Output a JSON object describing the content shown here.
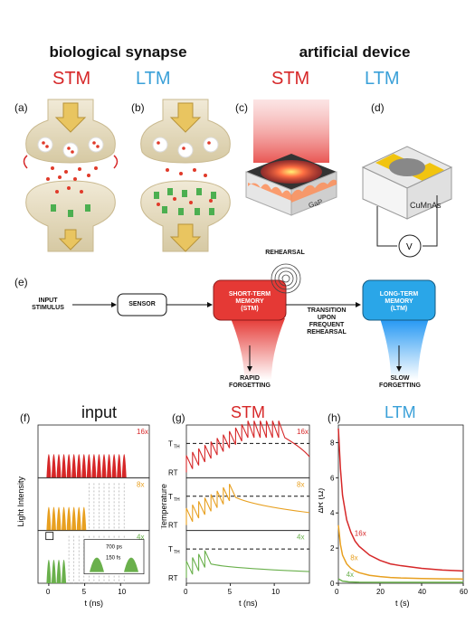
{
  "headers": {
    "bio": "biological synapse",
    "artificial": "artificial device"
  },
  "tags": {
    "stm": "STM",
    "ltm": "LTM"
  },
  "panels": {
    "a": "(a)",
    "b": "(b)",
    "c": "(c)",
    "d": "(d)",
    "e": "(e)",
    "f": "(f)",
    "g": "(g)",
    "h": "(h)"
  },
  "device": {
    "gap_label": "GaP",
    "cumnas_label": "CuMnAs",
    "voltmeter": "V"
  },
  "flow": {
    "input": "INPUT\nSTIMULUS",
    "sensor": "SENSOR",
    "stm_box": "SHORT-TERM\nMEMORY\n(STM)",
    "rehearsal": "REHEARSAL",
    "transition": "TRANSITION\nUPON\nFREQUENT\nREHEARSAL",
    "ltm_box": "LONG-TERM\nMEMORY\n(LTM)",
    "rapid": "RAPID\nFORGETTING",
    "slow": "SLOW\nFORGETTING"
  },
  "plot_titles": {
    "f": "input",
    "g": "STM",
    "h": "LTM"
  },
  "colors": {
    "red": "#d62728",
    "orange": "#e8a020",
    "green": "#6ab04c",
    "blue": "#3aa0d8"
  },
  "chart_data": [
    {
      "type": "line",
      "title": "input",
      "xlabel": "t (ns)",
      "ylabel": "Light Intensity",
      "xlim": [
        -1.5,
        14
      ],
      "xticks": [
        0,
        5,
        10
      ],
      "series": [
        {
          "name": "16x",
          "pulse_times_ns": [
            0,
            0.7,
            1.4,
            2.1,
            2.8,
            3.5,
            4.2,
            4.9,
            5.6,
            6.3,
            7.0,
            7.7,
            8.4,
            9.1,
            9.8,
            10.5
          ]
        },
        {
          "name": "8x",
          "pulse_times_ns": [
            0,
            0.7,
            1.4,
            2.1,
            2.8,
            3.5,
            4.2,
            4.9
          ]
        },
        {
          "name": "4x",
          "pulse_times_ns": [
            0,
            0.7,
            1.4,
            2.1
          ]
        }
      ],
      "inset": {
        "spacing": "700 ps",
        "width": "150 fs"
      }
    },
    {
      "type": "line",
      "title": "STM",
      "xlabel": "t (ns)",
      "ylabel": "Temperature",
      "xlim": [
        0,
        14
      ],
      "xticks": [
        0,
        5,
        10
      ],
      "y_levels": [
        "T_TH",
        "RT"
      ],
      "series": [
        {
          "name": "16x"
        },
        {
          "name": "8x"
        },
        {
          "name": "4x"
        }
      ]
    },
    {
      "type": "line",
      "title": "LTM",
      "xlabel": "t (s)",
      "ylabel": "ΔR (Ω)",
      "xlim": [
        0,
        60
      ],
      "ylim": [
        0,
        9
      ],
      "xticks": [
        0,
        20,
        40,
        60
      ],
      "yticks": [
        0,
        2,
        4,
        6,
        8
      ],
      "series": [
        {
          "name": "16x",
          "x": [
            0,
            1,
            2,
            4,
            6,
            8,
            10,
            15,
            20,
            25,
            30,
            40,
            50,
            60
          ],
          "y": [
            8.8,
            6.5,
            5.0,
            3.6,
            2.9,
            2.4,
            2.1,
            1.6,
            1.3,
            1.1,
            1.0,
            0.85,
            0.75,
            0.7
          ]
        },
        {
          "name": "8x",
          "x": [
            0,
            1,
            2,
            4,
            6,
            8,
            10,
            15,
            20,
            25,
            30,
            40,
            50,
            60
          ],
          "y": [
            3.3,
            2.2,
            1.6,
            1.1,
            0.85,
            0.7,
            0.6,
            0.45,
            0.38,
            0.33,
            0.3,
            0.27,
            0.25,
            0.24
          ]
        },
        {
          "name": "4x",
          "x": [
            0,
            2,
            5,
            10,
            20,
            40,
            60
          ],
          "y": [
            0.25,
            0.12,
            0.08,
            0.06,
            0.05,
            0.05,
            0.05
          ]
        }
      ]
    }
  ]
}
